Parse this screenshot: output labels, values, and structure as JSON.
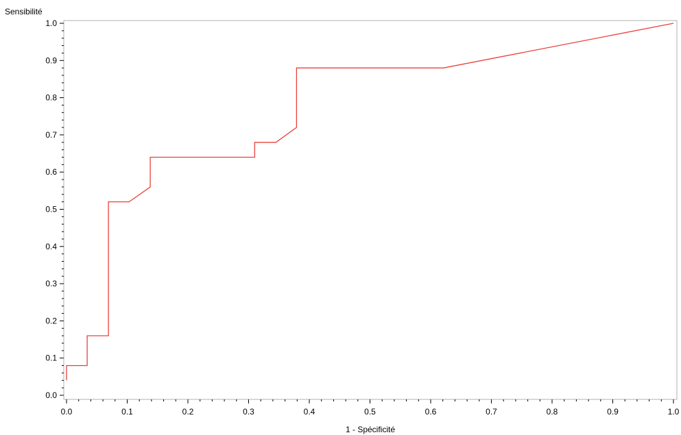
{
  "chart_data": {
    "type": "line",
    "title": "",
    "xlabel": "1 - Spécificité",
    "ylabel": "Sensibilité",
    "xlim": [
      0.0,
      1.0
    ],
    "ylim": [
      0.0,
      1.0
    ],
    "grid": false,
    "legend": "none",
    "x_ticks": [
      "0.0",
      "0.1",
      "0.2",
      "0.3",
      "0.4",
      "0.5",
      "0.6",
      "0.7",
      "0.8",
      "0.9",
      "1.0"
    ],
    "y_ticks": [
      "0.0",
      "0.1",
      "0.2",
      "0.3",
      "0.4",
      "0.5",
      "0.6",
      "0.7",
      "0.8",
      "0.9",
      "1.0"
    ],
    "series": [
      {
        "color": "#e8403c",
        "points": [
          [
            0.0,
            0.04
          ],
          [
            0.0,
            0.08
          ],
          [
            0.034,
            0.08
          ],
          [
            0.034,
            0.16
          ],
          [
            0.069,
            0.16
          ],
          [
            0.069,
            0.52
          ],
          [
            0.103,
            0.52
          ],
          [
            0.138,
            0.56
          ],
          [
            0.138,
            0.64
          ],
          [
            0.31,
            0.64
          ],
          [
            0.31,
            0.68
          ],
          [
            0.345,
            0.68
          ],
          [
            0.379,
            0.72
          ],
          [
            0.379,
            0.88
          ],
          [
            0.621,
            0.88
          ],
          [
            1.0,
            1.0
          ]
        ]
      }
    ]
  }
}
